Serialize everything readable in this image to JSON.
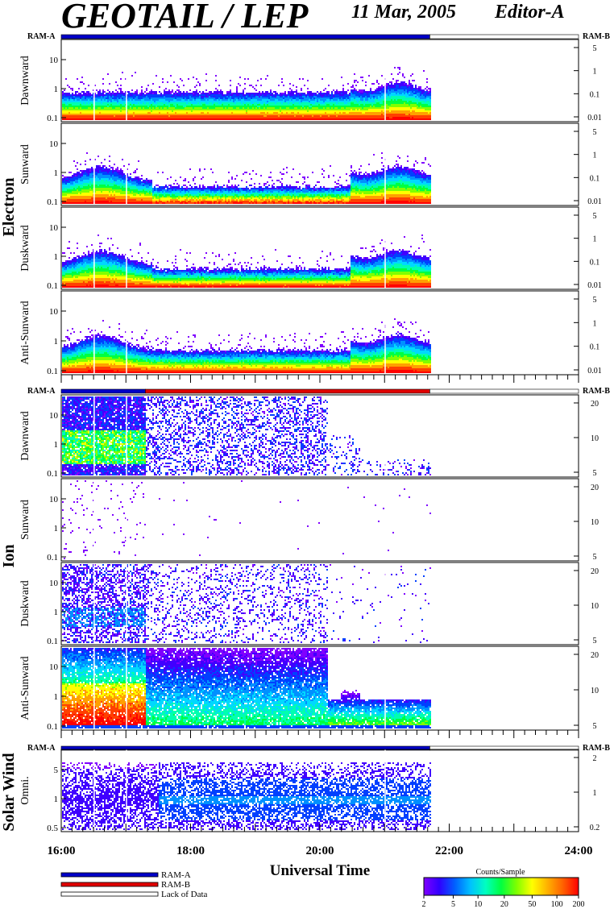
{
  "header": {
    "title": "GEOTAIL / LEP",
    "date": "11 Mar, 2005",
    "editor": "Editor-A"
  },
  "chart_data": {
    "type": "heatmap",
    "xlabel": "Universal Time",
    "x_ticks": [
      "16:00",
      "18:00",
      "20:00",
      "22:00",
      "24:00"
    ],
    "xlim": [
      16,
      24
    ],
    "data_end_hour": 21.7,
    "groups": [
      {
        "name": "Electron",
        "mode_left": "RAM-A",
        "mode_right": "RAM-B",
        "mode_bar": [
          {
            "from": 16,
            "to": 21.7,
            "mode": "RAM-A"
          },
          {
            "from": 21.7,
            "to": 24,
            "mode": "Lack of Data"
          }
        ],
        "panels": [
          {
            "label": "Dawnward",
            "left_ticks": [
              "10",
              "1",
              "0.1"
            ],
            "right_ticks": [
              "5",
              "1",
              "0.1",
              "0.01"
            ]
          },
          {
            "label": "Sunward",
            "left_ticks": [
              "10",
              "1",
              "0.1"
            ],
            "right_ticks": [
              "5",
              "1",
              "0.1",
              "0.01"
            ]
          },
          {
            "label": "Duskward",
            "left_ticks": [
              "10",
              "1",
              "0.1"
            ],
            "right_ticks": [
              "5",
              "1",
              "0.1",
              "0.01"
            ]
          },
          {
            "label": "Anti-Sunward",
            "left_ticks": [
              "10",
              "1",
              "0.1"
            ],
            "right_ticks": [
              "5",
              "1",
              "0.1",
              "0.01"
            ]
          }
        ]
      },
      {
        "name": "Ion",
        "mode_left": "RAM-A",
        "mode_right": "RAM-B",
        "mode_bar": [
          {
            "from": 16,
            "to": 17.3,
            "mode": "RAM-A"
          },
          {
            "from": 17.3,
            "to": 21.7,
            "mode": "RAM-B"
          },
          {
            "from": 21.7,
            "to": 24,
            "mode": "Lack of Data"
          }
        ],
        "panels": [
          {
            "label": "Dawnward",
            "left_ticks": [
              "10",
              "1",
              "0.1"
            ],
            "right_ticks": [
              "20",
              "10",
              "5"
            ]
          },
          {
            "label": "Sunward",
            "left_ticks": [
              "10",
              "1",
              "0.1"
            ],
            "right_ticks": [
              "20",
              "10",
              "5"
            ]
          },
          {
            "label": "Duskward",
            "left_ticks": [
              "10",
              "1",
              "0.1"
            ],
            "right_ticks": [
              "20",
              "10",
              "5"
            ]
          },
          {
            "label": "Anti-Sunward",
            "left_ticks": [
              "10",
              "1",
              "0.1"
            ],
            "right_ticks": [
              "20",
              "10",
              "5"
            ]
          }
        ]
      },
      {
        "name": "Solar Wind",
        "mode_left": "RAM-A",
        "mode_right": "RAM-B",
        "mode_bar": [
          {
            "from": 16,
            "to": 21.7,
            "mode": "RAM-A"
          },
          {
            "from": 21.7,
            "to": 24,
            "mode": "Lack of Data"
          }
        ],
        "panels": [
          {
            "label": "Omni.",
            "left_ticks": [
              "5",
              "1",
              "0.5"
            ],
            "right_ticks": [
              "2",
              "1",
              "0.2"
            ]
          }
        ]
      }
    ],
    "legend": {
      "items": [
        {
          "label": "RAM-A",
          "color": "#0000c8"
        },
        {
          "label": "RAM-B",
          "color": "#e00000"
        },
        {
          "label": "Lack of Data",
          "color": "#ffffff"
        }
      ]
    },
    "colorbar": {
      "title": "Counts/Sample",
      "ticks": [
        "2",
        "5",
        "10",
        "20",
        "50",
        "100",
        "200"
      ],
      "colors": [
        "#8000ff",
        "#3000ff",
        "#0060ff",
        "#00c0ff",
        "#00ffc0",
        "#00ff40",
        "#80ff00",
        "#ffff00",
        "#ffb000",
        "#ff6000",
        "#ff0000"
      ]
    }
  }
}
